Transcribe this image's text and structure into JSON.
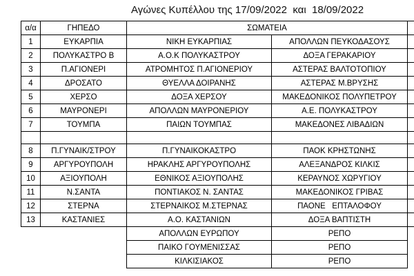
{
  "header": {
    "title": "Αγώνες Κυπέλλου της 17/09/2022  και  18/09/2022"
  },
  "table": {
    "columns": [
      "α/α",
      "ΓΗΠΕΔΟ",
      "ΣΩΜΑΤΕΙΑ"
    ],
    "rows": [
      [
        "1",
        "ΕΥΚΑΡΠΙΑ",
        "ΝΙΚΗ ΕΥΚΑΡΠΙΑΣ",
        "ΑΠΟΛΛΩΝ ΠΕΥΚΟΔΑΣΟΥΣ"
      ],
      [
        "2",
        "ΠΟΛΥΚΑΣΤΡΟ Β",
        "Α.Ο.Κ ΠΟΛΥΚΑΣΤΡΟΥ",
        "ΔΟΞΑ ΓΕΡΑΚΑΡΙΟΥ"
      ],
      [
        "3",
        "Π.ΑΓΙΟΝΕΡΙ",
        "ΑΤΡΟΜΗΤΟΣ Π.ΑΓΙΟΝΕΡΙΟΥ",
        "ΑΣΤΕΡΑΣ ΒΑΛΤΟΤΟΠΙΟΥ"
      ],
      [
        "4",
        "ΔΡΟΣΑΤΟ",
        "ΘΥΕΛΛΑ ΔΟΙΡΑΝΗΣ",
        "ΑΣΤΕΡΑΣ Μ.ΒΡΥΣΗΣ"
      ],
      [
        "5",
        "ΧΕΡΣΟ",
        "ΔΟΞΑ ΧΕΡΣΟΥ",
        "ΜΑΚΕΔΟΝΙΚΟΣ ΠΟΛΥΠΕΤΡΟΥ"
      ],
      [
        "6",
        "ΜΑΥΡΟΝΕΡΙ",
        "ΑΠΟΛΛΩΝ ΜΑΥΡΟΝΕΡΙΟΥ",
        "Α.Ε. ΠΟΛΥΚΑΣΤΡΟΥ"
      ],
      [
        "7",
        "ΤΟΥΜΠΑ",
        "ΠΑΙΩΝ ΤΟΥΜΠΑΣ",
        "ΜΑΚΕΔΟΝΕΣ ΛΙΒΑΔΙΩΝ"
      ]
    ],
    "rows_2": [
      [
        "8",
        "Π.ΓΥΝΑΙΚ/ΣΤΡΟΥ",
        "Π.ΓΥΝΑΙΚΟΚΑΣΤΡΟ",
        "ΠΑΟΚ ΚΡΗΣΤΩΝΗΣ"
      ],
      [
        "9",
        "ΑΡΓΥΡΟΥΠΟΛΗ",
        "ΗΡΑΚΛΗΣ ΑΡΓΥΡΟΥΠΟΛΗΣ",
        "ΑΛΕΞΑΝΔΡΟΣ ΚΙΛΚΙΣ"
      ],
      [
        "10",
        "ΑΞΙΟΥΠΟΛΗ",
        "ΕΘΝΙΚΟΣ ΑΞΙΟΥΠΟΛΗΣ",
        "ΚΕΡΑΥΝΟΣ ΧΩΡΥΓΙΟΥ"
      ],
      [
        "11",
        "Ν.ΣΑΝΤΑ",
        "ΠΟΝΤΙΑΚΟΣ Ν. ΣΑΝΤΑΣ",
        "ΜΑΚΕΔΟΝΙΚΟΣ ΓΡΙΒΑΣ"
      ],
      [
        "12",
        "ΣΤΕΡΝΑ",
        "ΣΤΕΡΝΑΙΚΟΣ Μ.ΣΤΕΡΝΑΣ",
        "ΠΑΟΝΕ   ΕΠΤΑΛΟΦΟΥ"
      ],
      [
        "13",
        "ΚΑΣΤΑΝΙΕΣ",
        "Α.Ο. ΚΑΣΤΑΝΙΩΝ",
        "ΔΟΞΑ ΒΑΠΤΙΣΤΗ"
      ]
    ],
    "byes": [
      [
        "ΑΠΟΛΛΩΝ ΕΥΡΩΠΟΥ",
        "ΡΕΠΟ"
      ],
      [
        "ΠΑΙΚΟ ΓΟΥΜΕΝΙΣΣΑΣ",
        "ΡΕΠΟ"
      ],
      [
        "ΚΙΛΚΙΣΙΑΚΟΣ",
        "ΡΕΠΟ"
      ]
    ]
  }
}
